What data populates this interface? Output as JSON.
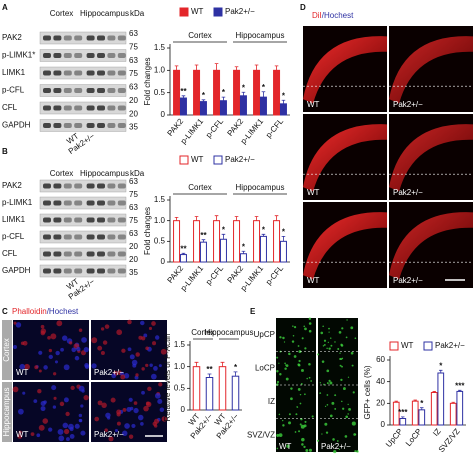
{
  "panel_letters": [
    "A",
    "B",
    "C",
    "D",
    "E"
  ],
  "blots": [
    {
      "columns": [
        "Cortex",
        "Hippocampus"
      ],
      "unit": "kDa",
      "rows": [
        "PAK2",
        "p-LIMK1*",
        "LIMK1",
        "p-CFL",
        "CFL",
        "GAPDH"
      ],
      "markers": [
        63,
        75,
        63,
        75,
        63,
        20,
        20,
        35
      ],
      "lanes": [
        "WT",
        "Pak2+/−"
      ]
    },
    {
      "columns": [
        "Cortex",
        "Hippocampus"
      ],
      "unit": "kDa",
      "rows": [
        "PAK2",
        "p-LIMK1",
        "LIMK1",
        "p-CFL",
        "CFL",
        "GAPDH"
      ],
      "markers": [
        63,
        75,
        63,
        75,
        63,
        20,
        20,
        35
      ],
      "lanes": [
        "WT",
        "Pak2+/−"
      ]
    }
  ],
  "images": {
    "D": {
      "stain": [
        "DiI",
        "/Hochest"
      ],
      "conditions": [
        "WT",
        "Pak2+/−"
      ]
    },
    "C": {
      "stain": [
        "Phalloidin",
        "/Hochest"
      ],
      "regions": [
        "Cortex",
        "Hippocampus"
      ],
      "conditions": [
        "WT",
        "Pak2+/−"
      ]
    },
    "E": {
      "layers": [
        "UpCP",
        "LoCP",
        "IZ",
        "SVZ/VZ"
      ],
      "conditions": [
        "WT",
        "Pak2+/−"
      ]
    }
  },
  "chart_data": [
    {
      "type": "bar",
      "bar_style": "filled",
      "y_label": "Fold changes",
      "groups": [
        "Cortex",
        "Hippocampus"
      ],
      "categories": [
        "PAK2",
        "p-LIMK1",
        "p-CFL",
        "PAK2",
        "p-LIMK1",
        "p-CFL"
      ],
      "series": [
        {
          "name": "WT",
          "color": "#e3262a",
          "values": [
            1,
            1,
            1,
            1,
            1,
            1
          ],
          "errors": [
            0.1,
            0.12,
            0.15,
            0.08,
            0.12,
            0.1
          ]
        },
        {
          "name": "Pak2+/−",
          "color": "#2e31a3",
          "values": [
            0.38,
            0.3,
            0.32,
            0.43,
            0.4,
            0.25
          ],
          "errors": [
            0.05,
            0.04,
            0.08,
            0.08,
            0.12,
            0.08
          ],
          "significance": [
            "**",
            "*",
            "*",
            "*",
            "*",
            "*"
          ]
        }
      ],
      "ylim": [
        0,
        1.5
      ],
      "yticks": [
        0,
        0.5,
        {
          "value": 1,
          "label": "1.0"
        },
        1.5
      ]
    },
    {
      "type": "bar",
      "bar_style": "open",
      "y_label": "Fold changes",
      "groups": [
        "Cortex",
        "Hippocampus"
      ],
      "categories": [
        "PAK2",
        "p-LIMK1",
        "p-CFL",
        "PAK2",
        "p-LIMK1",
        "p-CFL"
      ],
      "series": [
        {
          "name": "WT",
          "color": "#e3262a",
          "values": [
            1,
            1,
            1,
            1,
            1,
            1
          ],
          "errors": [
            0.08,
            0.1,
            0.12,
            0.1,
            0.1,
            0.12
          ]
        },
        {
          "name": "Pak2+/−",
          "color": "#2e31a3",
          "values": [
            0.18,
            0.48,
            0.55,
            0.2,
            0.62,
            0.5
          ],
          "errors": [
            0.03,
            0.06,
            0.12,
            0.06,
            0.05,
            0.12
          ],
          "significance": [
            "**",
            "**",
            "*",
            "*",
            "*",
            "*"
          ]
        }
      ],
      "ylim": [
        0,
        1.5
      ],
      "yticks": [
        0,
        0.5,
        {
          "value": 1,
          "label": "1.0"
        },
        1.5
      ]
    },
    {
      "type": "bar",
      "bar_style": "open",
      "y_label": "Relative levels of F-Actin",
      "groups": [
        "Cortex",
        "Hippocampus"
      ],
      "categories": [
        "WT",
        "Pak2+/−",
        "WT",
        "Pak2+/−"
      ],
      "colors": [
        "#e3262a",
        "#2e31a3",
        "#e3262a",
        "#2e31a3"
      ],
      "values": [
        1.0,
        0.75,
        1.0,
        0.78
      ],
      "errors": [
        0.1,
        0.08,
        0.1,
        0.1
      ],
      "significance": [
        null,
        "**",
        null,
        "*"
      ],
      "ylim": [
        0,
        1.5
      ],
      "yticks": [
        0,
        0.5,
        {
          "value": 1,
          "label": "1.0"
        },
        1.5
      ]
    },
    {
      "type": "bar",
      "bar_style": "open",
      "y_label": "GFP+ cells (%)",
      "categories": [
        "UpCP",
        "LoCP",
        "IZ",
        "SVZ/VZ"
      ],
      "series": [
        {
          "name": "WT",
          "color": "#e3262a",
          "values": [
            21,
            22,
            30,
            20
          ],
          "errors": [
            1,
            1,
            1,
            1
          ]
        },
        {
          "name": "Pak2+/−",
          "color": "#2e31a3",
          "values": [
            6,
            14,
            48,
            31
          ],
          "errors": [
            1.5,
            2,
            2.5,
            1
          ],
          "significance": [
            "***",
            "*",
            "*",
            "***"
          ]
        }
      ],
      "ylim": [
        0,
        60
      ],
      "yticks": [
        0,
        20,
        40,
        60
      ]
    }
  ]
}
